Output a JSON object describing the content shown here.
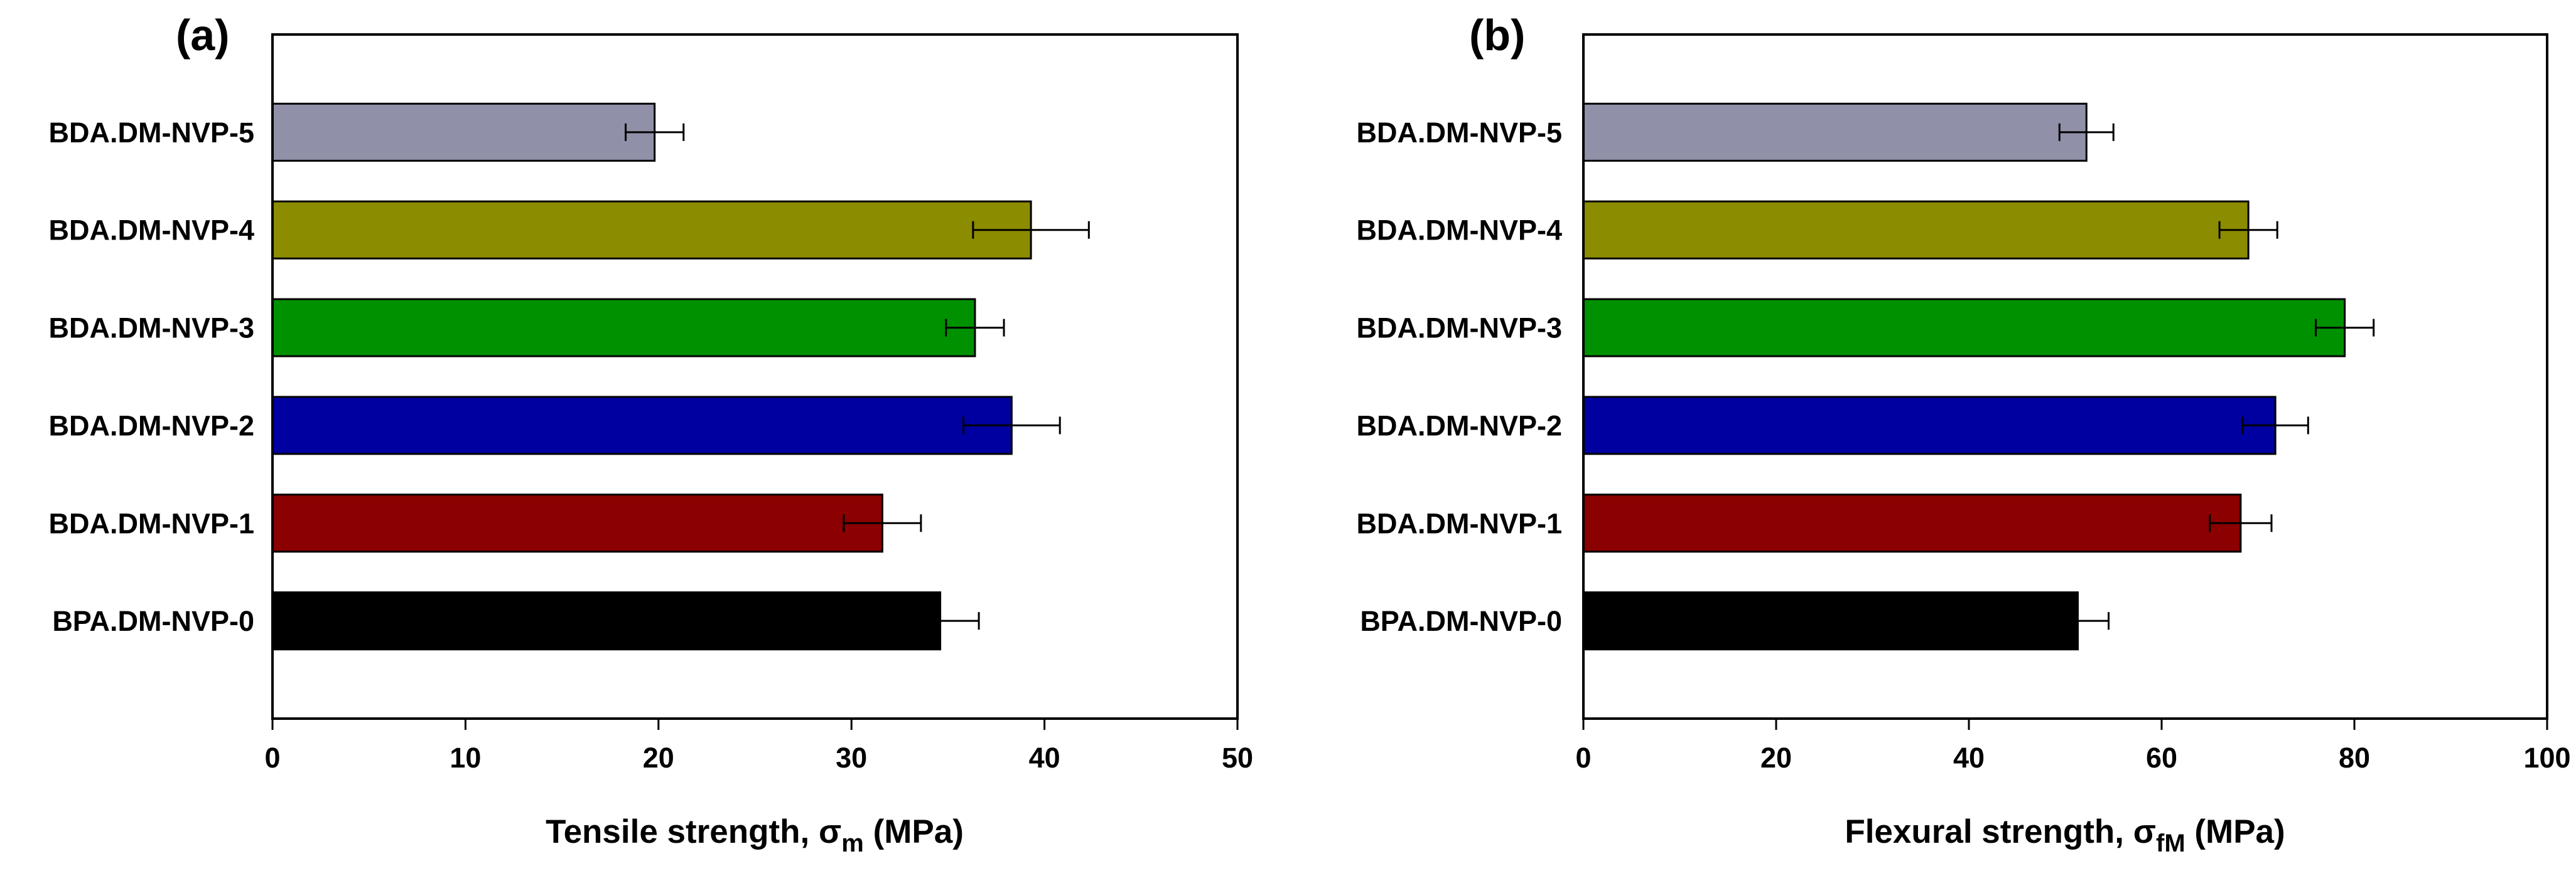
{
  "chart_data": [
    {
      "type": "bar",
      "orientation": "horizontal",
      "panel_label": "(a)",
      "categories": [
        "BPA.DM-NVP-0",
        "BDA.DM-NVP-1",
        "BDA.DM-NVP-2",
        "BDA.DM-NVP-3",
        "BDA.DM-NVP-4",
        "BDA.DM-NVP-5"
      ],
      "values": [
        34.6,
        31.6,
        38.3,
        36.4,
        39.3,
        19.8
      ],
      "errors": [
        2.0,
        2.0,
        2.5,
        1.5,
        3.0,
        1.5
      ],
      "colors": [
        "#000000",
        "#8b0000",
        "#0000a0",
        "#009100",
        "#8c8c00",
        "#9090a8"
      ],
      "xlim": [
        0,
        50
      ],
      "xticks": [
        0,
        10,
        20,
        30,
        40,
        50
      ],
      "xlabel": {
        "main": "Tensile strength, ",
        "symbol": "σ",
        "subscript": "m",
        "unit": " (MPa)"
      },
      "ylabel": "",
      "legend": "none",
      "grid": false
    },
    {
      "type": "bar",
      "orientation": "horizontal",
      "panel_label": "(b)",
      "categories": [
        "BPA.DM-NVP-0",
        "BDA.DM-NVP-1",
        "BDA.DM-NVP-2",
        "BDA.DM-NVP-3",
        "BDA.DM-NVP-4",
        "BDA.DM-NVP-5"
      ],
      "values": [
        51.3,
        68.2,
        71.8,
        79.0,
        69.0,
        52.2
      ],
      "errors": [
        3.2,
        3.2,
        3.4,
        3.0,
        3.0,
        2.8
      ],
      "colors": [
        "#000000",
        "#8b0000",
        "#0000a0",
        "#009100",
        "#8c8c00",
        "#9090a8"
      ],
      "xlim": [
        0,
        100
      ],
      "xticks": [
        0,
        20,
        40,
        60,
        80,
        100
      ],
      "xlabel": {
        "main": "Flexural strength, ",
        "symbol": "σ",
        "subscript": "fM",
        "unit": " (MPa)"
      },
      "ylabel": "",
      "legend": "none",
      "grid": false
    }
  ]
}
